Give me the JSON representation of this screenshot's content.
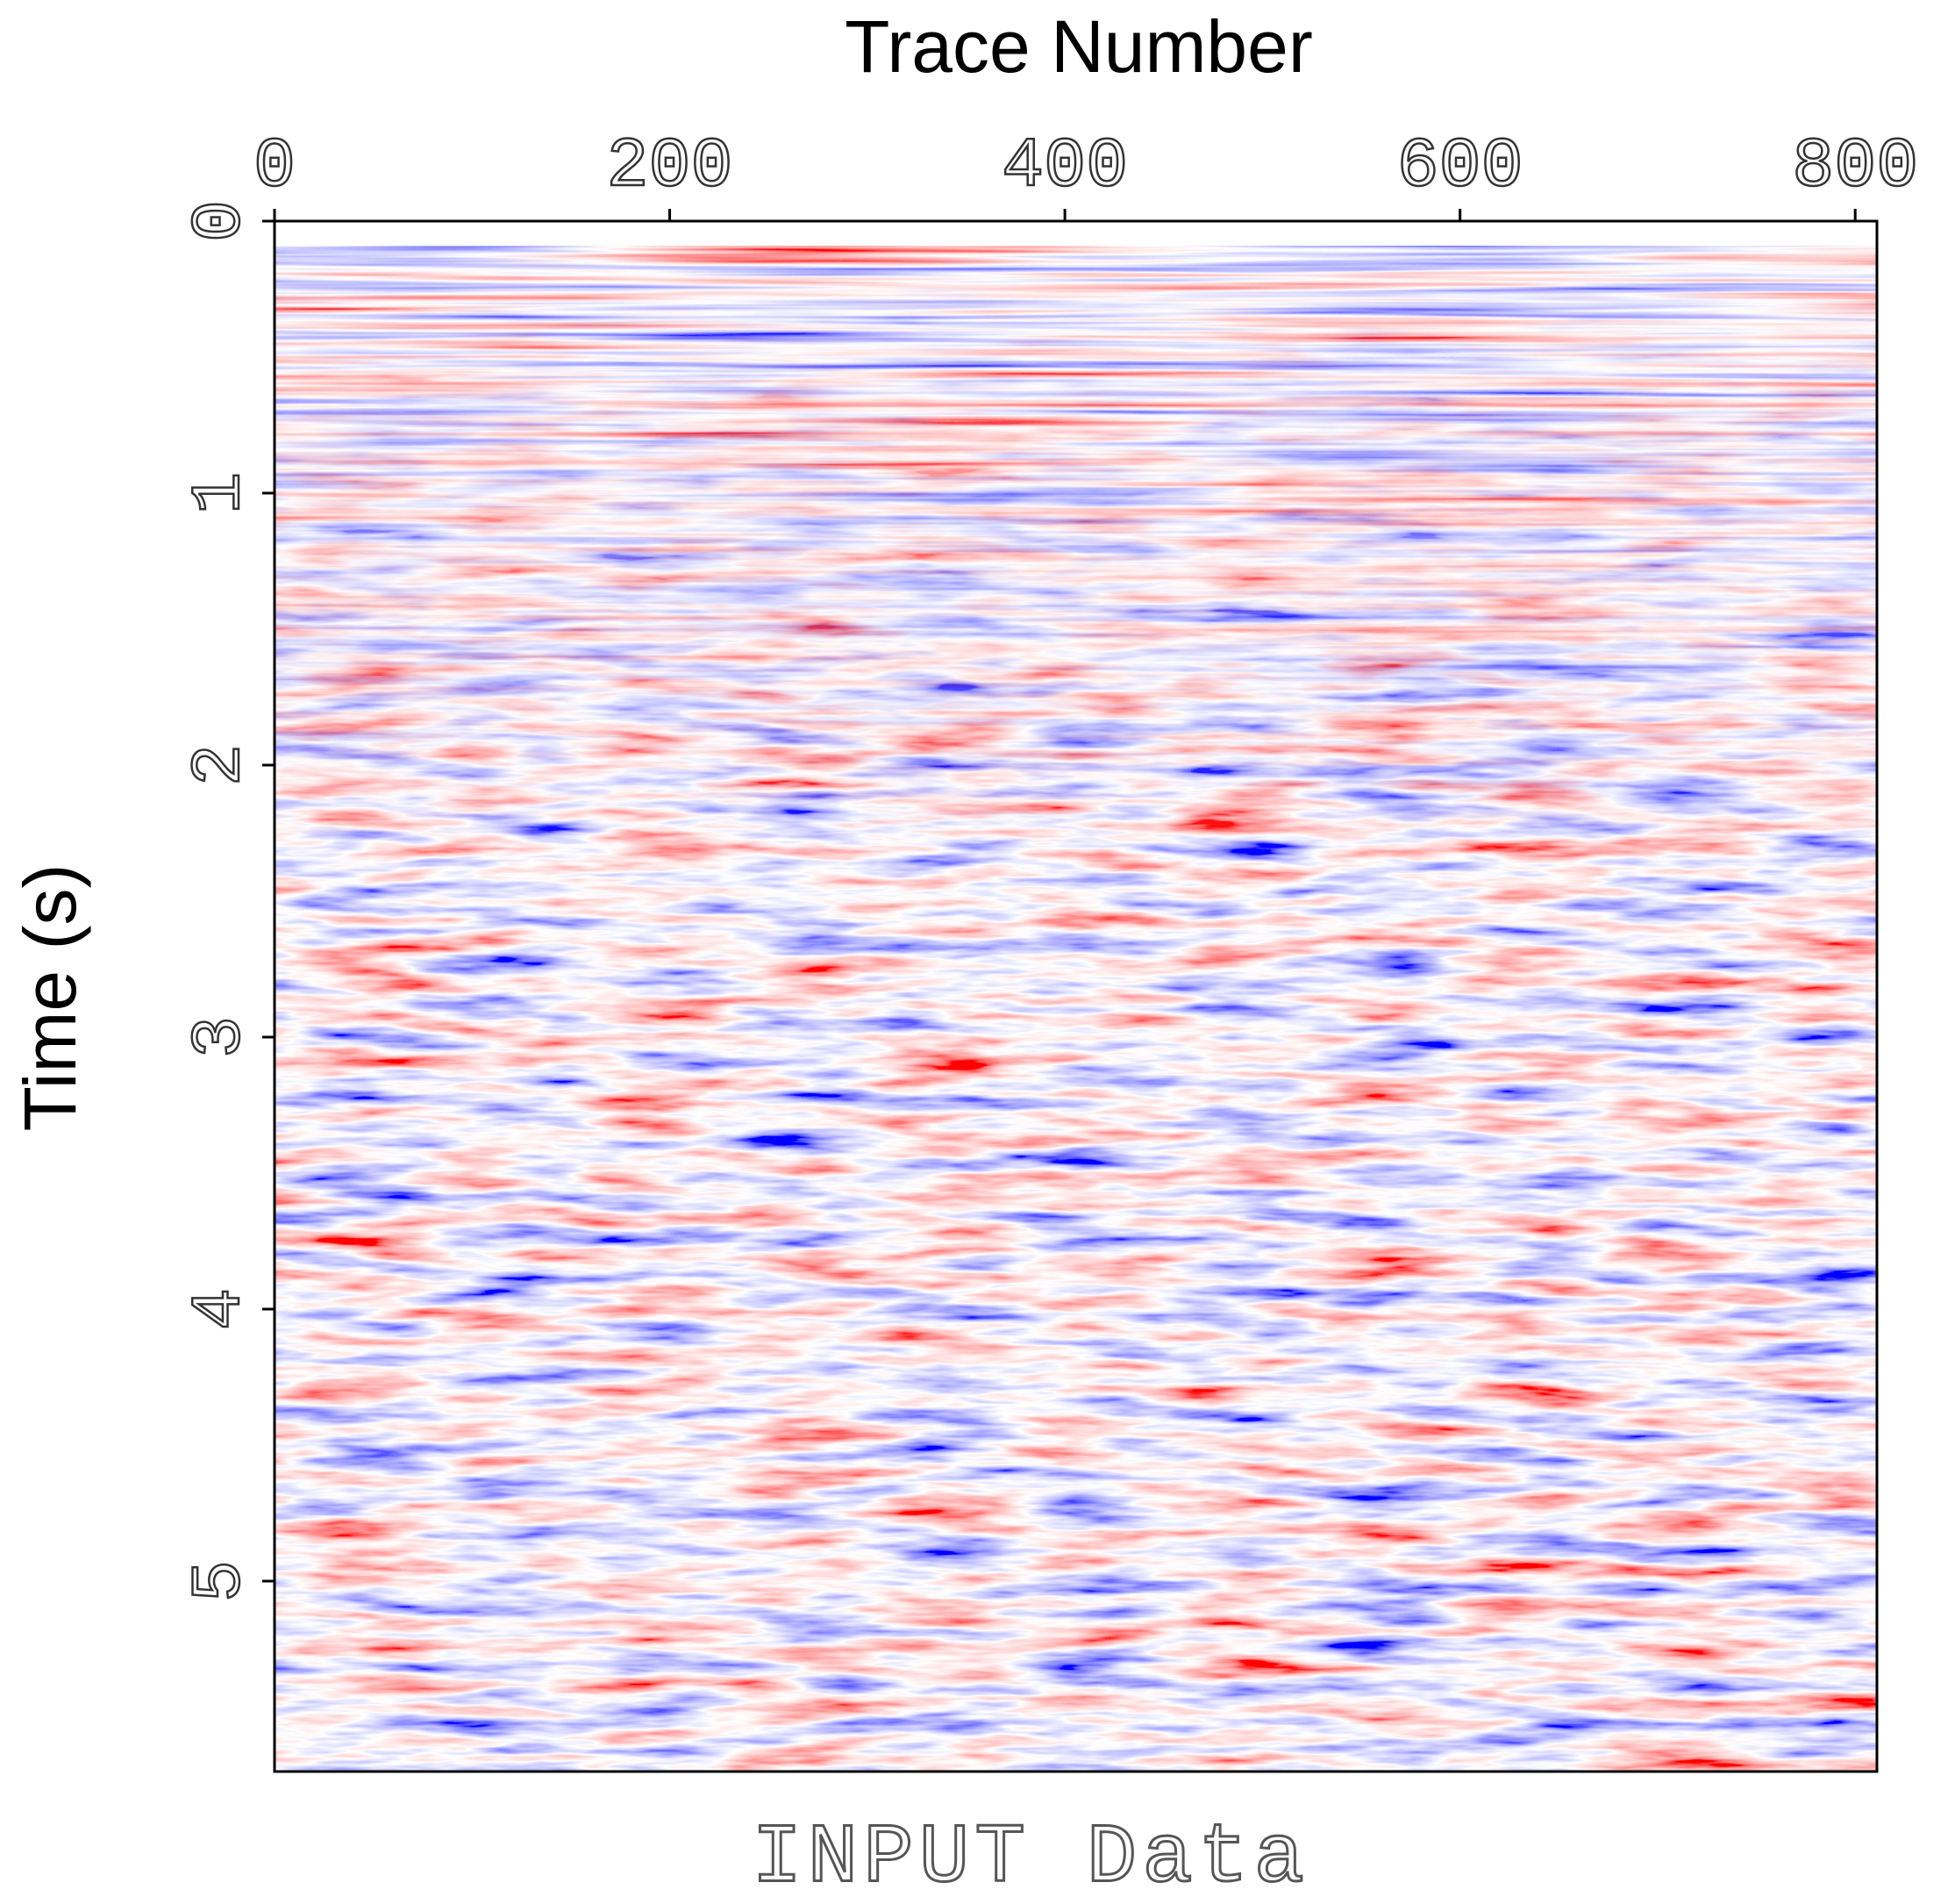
{
  "chart_data": {
    "type": "image",
    "x_label": "Trace Number",
    "y_label": "Time (s)",
    "caption": "INPUT Data",
    "xlim": [
      0,
      811
    ],
    "xticks": [
      0,
      200,
      400,
      600,
      800
    ],
    "ylim": [
      0,
      5.7
    ],
    "yticks": [
      0,
      1,
      2,
      3,
      4,
      5
    ],
    "y_inverted": true,
    "x_axis_position": "top",
    "colors": {
      "negative": "#0000ff",
      "positive": "#ff0000"
    }
  }
}
